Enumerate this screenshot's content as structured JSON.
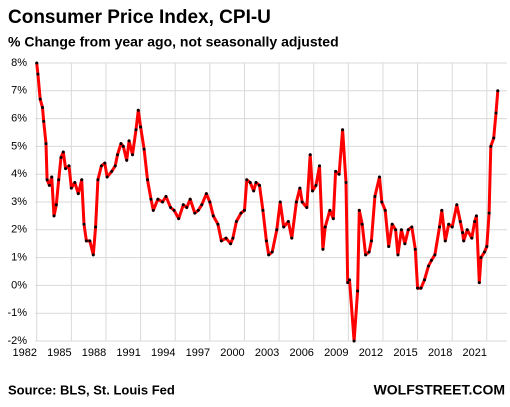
{
  "chart_data": {
    "type": "line",
    "title": "Consumer Price Index, CPI-U",
    "subtitle": "% Change from year ago, not seasonally adjusted",
    "source": "Source: BLS, St. Louis Fed",
    "credit": "WOLFSTREET.COM",
    "x": [
      1982.0,
      1982.1,
      1982.3,
      1982.5,
      1982.6,
      1982.8,
      1982.9,
      1983.1,
      1983.3,
      1983.5,
      1983.7,
      1983.9,
      1984.1,
      1984.3,
      1984.5,
      1984.8,
      1985.0,
      1985.3,
      1985.6,
      1985.9,
      1986.1,
      1986.3,
      1986.6,
      1986.9,
      1987.1,
      1987.3,
      1987.6,
      1987.9,
      1988.1,
      1988.5,
      1988.8,
      1989.0,
      1989.3,
      1989.5,
      1989.8,
      1990.0,
      1990.3,
      1990.6,
      1990.8,
      1991.0,
      1991.3,
      1991.6,
      1991.9,
      1992.1,
      1992.5,
      1992.9,
      1993.2,
      1993.6,
      1993.9,
      1994.3,
      1994.7,
      1995.0,
      1995.3,
      1995.7,
      1996.0,
      1996.3,
      1996.7,
      1997.0,
      1997.3,
      1997.7,
      1998.0,
      1998.4,
      1998.8,
      1999.0,
      1999.3,
      1999.7,
      2000.0,
      2000.2,
      2000.5,
      2000.8,
      2001.0,
      2001.3,
      2001.6,
      2001.9,
      2002.1,
      2002.4,
      2002.8,
      2003.1,
      2003.4,
      2003.8,
      2004.1,
      2004.5,
      2004.8,
      2005.0,
      2005.4,
      2005.7,
      2005.9,
      2006.2,
      2006.5,
      2006.8,
      2007.0,
      2007.4,
      2007.7,
      2007.9,
      2008.2,
      2008.5,
      2008.8,
      2008.95,
      2009.1,
      2009.5,
      2009.8,
      2009.95,
      2010.2,
      2010.5,
      2010.8,
      2011.0,
      2011.3,
      2011.7,
      2011.9,
      2012.2,
      2012.5,
      2012.8,
      2013.1,
      2013.3,
      2013.6,
      2013.9,
      2014.2,
      2014.5,
      2014.8,
      2015.0,
      2015.3,
      2015.6,
      2015.95,
      2016.2,
      2016.5,
      2016.9,
      2017.1,
      2017.4,
      2017.7,
      2018.0,
      2018.4,
      2018.7,
      2018.9,
      2019.0,
      2019.3,
      2019.7,
      2019.95,
      2020.1,
      2020.35,
      2020.5,
      2020.8,
      2021.0,
      2021.2,
      2021.35,
      2021.6,
      2021.8,
      2021.95
    ],
    "series": [
      {
        "name": "CPI-U",
        "color": "#ff0000",
        "marker_color": "#000000",
        "values": [
          8.0,
          7.6,
          6.7,
          6.4,
          5.9,
          5.1,
          3.8,
          3.6,
          3.9,
          2.5,
          2.9,
          3.8,
          4.6,
          4.8,
          4.2,
          4.3,
          3.5,
          3.7,
          3.3,
          3.8,
          2.2,
          1.6,
          1.6,
          1.1,
          2.1,
          3.8,
          4.3,
          4.4,
          3.9,
          4.1,
          4.3,
          4.7,
          5.1,
          5.0,
          4.5,
          5.2,
          4.7,
          5.6,
          6.3,
          5.7,
          4.9,
          3.8,
          3.1,
          2.7,
          3.1,
          3.0,
          3.2,
          2.8,
          2.7,
          2.4,
          2.9,
          2.8,
          3.1,
          2.6,
          2.7,
          2.9,
          3.3,
          3.0,
          2.5,
          2.2,
          1.6,
          1.7,
          1.5,
          1.7,
          2.3,
          2.6,
          2.7,
          3.8,
          3.7,
          3.4,
          3.7,
          3.6,
          2.7,
          1.6,
          1.1,
          1.2,
          2.0,
          3.0,
          2.1,
          2.3,
          1.7,
          3.0,
          3.5,
          3.0,
          2.8,
          4.7,
          3.4,
          3.6,
          4.3,
          1.3,
          2.1,
          2.7,
          2.4,
          4.1,
          4.0,
          5.6,
          3.7,
          0.1,
          0.2,
          -2.0,
          -0.2,
          2.7,
          2.2,
          1.1,
          1.2,
          1.6,
          3.2,
          3.9,
          3.0,
          2.7,
          1.4,
          2.2,
          2.0,
          1.1,
          2.0,
          1.5,
          2.0,
          2.1,
          1.3,
          -0.1,
          -0.1,
          0.2,
          0.7,
          0.9,
          1.1,
          2.1,
          2.7,
          1.6,
          2.2,
          2.1,
          2.9,
          2.3,
          1.9,
          1.6,
          2.0,
          1.7,
          2.3,
          2.5,
          0.1,
          1.0,
          1.2,
          1.4,
          2.6,
          5.0,
          5.3,
          6.2,
          7.0
        ]
      }
    ],
    "xlim": [
      1981.85,
      2022.75
    ],
    "xticks": [
      1982,
      1985,
      1988,
      1991,
      1994,
      1997,
      2000,
      2003,
      2006,
      2009,
      2012,
      2015,
      2018,
      2021
    ],
    "ylim": [
      -2,
      8
    ],
    "yticks": [
      {
        "value": -2,
        "label": "-2%"
      },
      {
        "value": -1,
        "label": "-1%"
      },
      {
        "value": 0,
        "label": "0%"
      },
      {
        "value": 1,
        "label": "1%"
      },
      {
        "value": 2,
        "label": "2%"
      },
      {
        "value": 3,
        "label": "3%"
      },
      {
        "value": 4,
        "label": "4%"
      },
      {
        "value": 5,
        "label": "5%"
      },
      {
        "value": 6,
        "label": "6%"
      },
      {
        "value": 7,
        "label": "7%"
      },
      {
        "value": 8,
        "label": "8%"
      }
    ],
    "grid": true
  }
}
